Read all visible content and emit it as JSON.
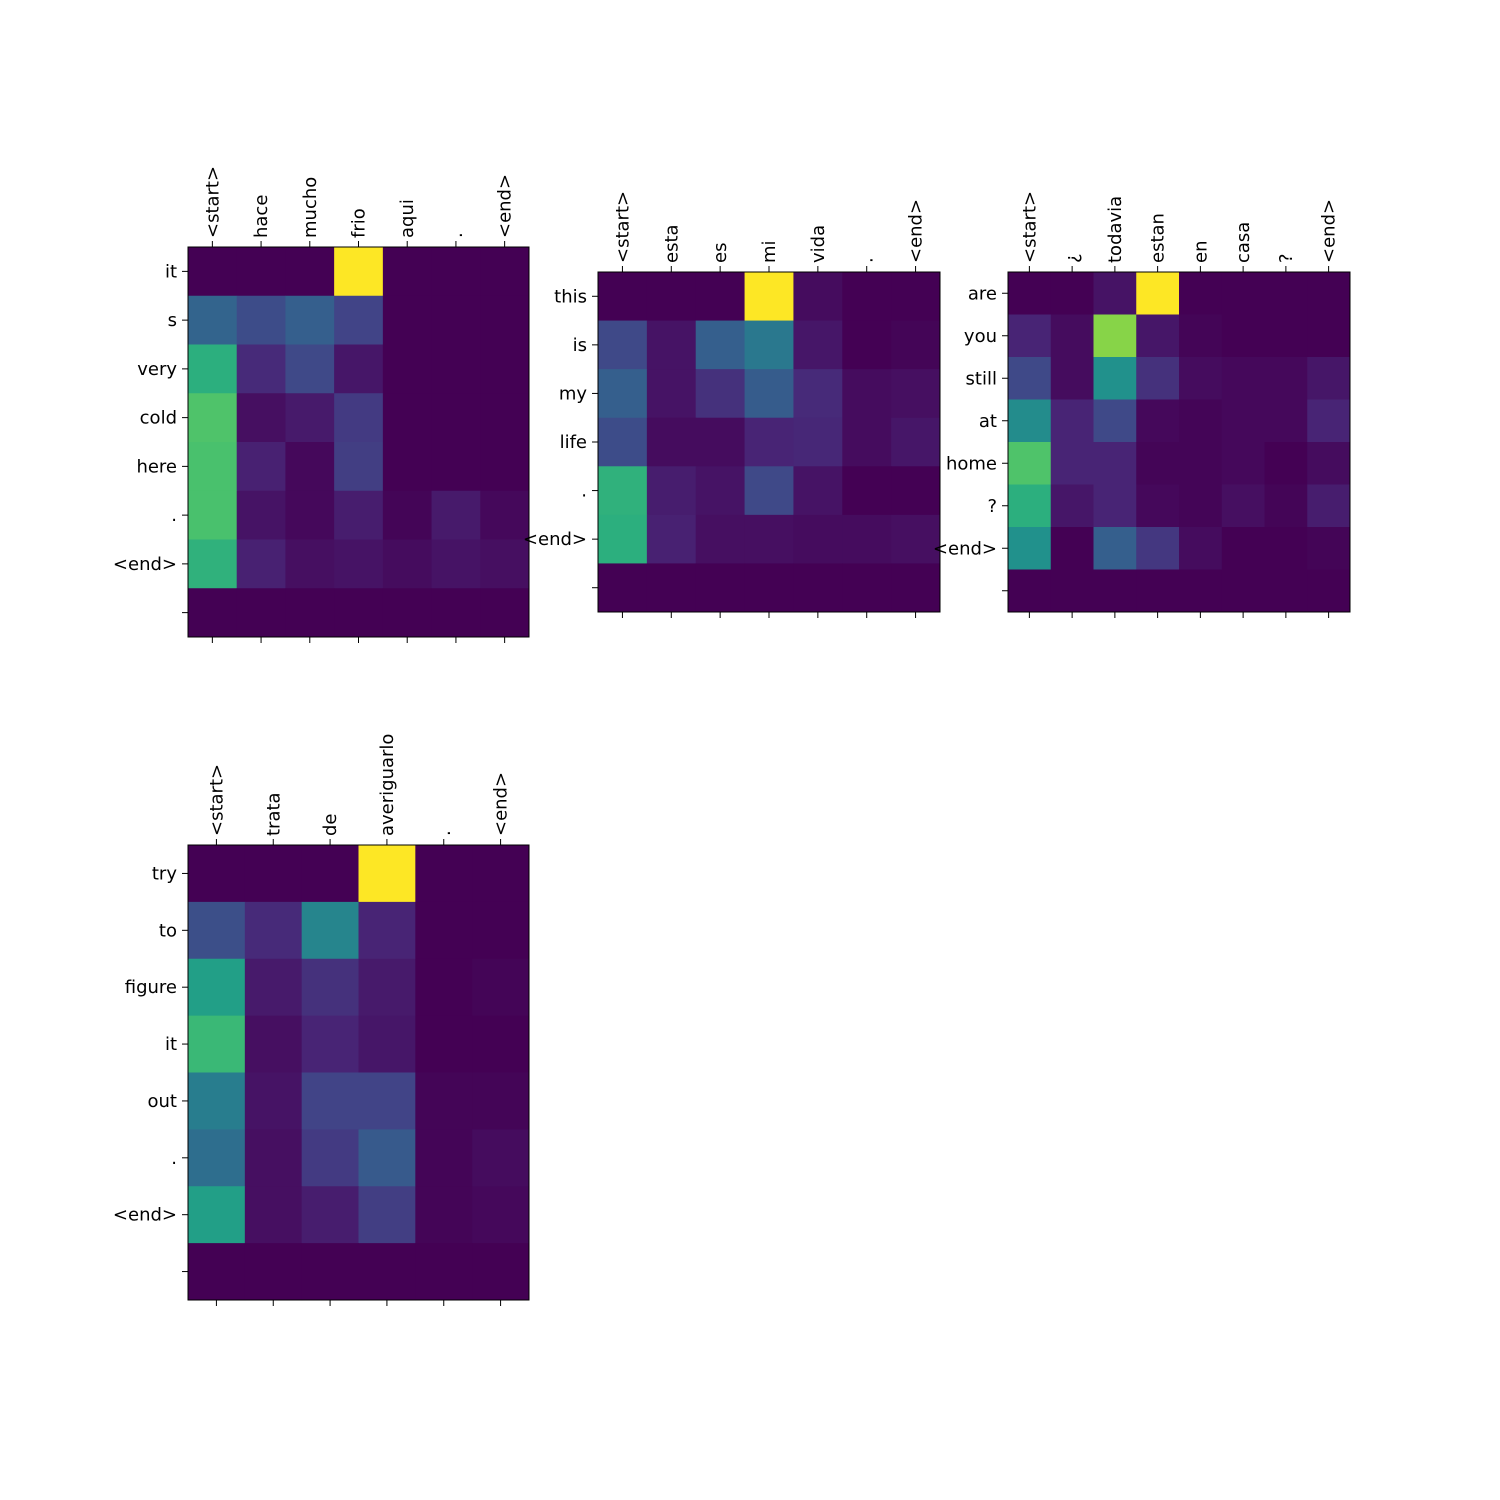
{
  "colormap": "viridis",
  "chart_data": [
    {
      "type": "heatmap",
      "x_labels": [
        "<start>",
        "hace",
        "mucho",
        "frio",
        "aqui",
        ".",
        "<end>"
      ],
      "y_labels": [
        "it",
        "s",
        "very",
        "cold",
        "here",
        ".",
        "<end>",
        ""
      ],
      "values": [
        [
          0.0,
          0.0,
          0.0,
          1.0,
          0.0,
          0.0,
          0.0
        ],
        [
          0.32,
          0.23,
          0.3,
          0.2,
          0.0,
          0.0,
          0.0
        ],
        [
          0.63,
          0.12,
          0.22,
          0.06,
          0.0,
          0.0,
          0.0
        ],
        [
          0.72,
          0.04,
          0.07,
          0.17,
          0.0,
          0.0,
          0.0
        ],
        [
          0.71,
          0.09,
          0.02,
          0.18,
          0.0,
          0.0,
          0.0
        ],
        [
          0.71,
          0.05,
          0.02,
          0.08,
          0.01,
          0.07,
          0.02
        ],
        [
          0.64,
          0.09,
          0.04,
          0.05,
          0.03,
          0.05,
          0.04
        ],
        [
          0.0,
          0.0,
          0.0,
          0.0,
          0.0,
          0.0,
          0.0
        ]
      ]
    },
    {
      "type": "heatmap",
      "x_labels": [
        "<start>",
        "esta",
        "es",
        "mi",
        "vida",
        ".",
        "<end>"
      ],
      "y_labels": [
        "this",
        "is",
        "my",
        "life",
        ".",
        "<end>",
        ""
      ],
      "values": [
        [
          0.0,
          0.0,
          0.0,
          1.0,
          0.03,
          0.0,
          0.0
        ],
        [
          0.22,
          0.05,
          0.3,
          0.4,
          0.06,
          0.0,
          0.01
        ],
        [
          0.3,
          0.05,
          0.14,
          0.29,
          0.12,
          0.03,
          0.04
        ],
        [
          0.23,
          0.03,
          0.03,
          0.1,
          0.11,
          0.03,
          0.06
        ],
        [
          0.64,
          0.08,
          0.05,
          0.22,
          0.05,
          0.0,
          0.0
        ],
        [
          0.63,
          0.09,
          0.04,
          0.04,
          0.03,
          0.03,
          0.04
        ],
        [
          0.0,
          0.0,
          0.0,
          0.0,
          0.0,
          0.0,
          0.0
        ]
      ]
    },
    {
      "type": "heatmap",
      "x_labels": [
        "<start>",
        "¿",
        "todavia",
        "estan",
        "en",
        "casa",
        "?",
        "<end>"
      ],
      "y_labels": [
        "are",
        "you",
        "still",
        "at",
        "home",
        "?",
        "<end>",
        ""
      ],
      "values": [
        [
          0.0,
          0.0,
          0.05,
          1.0,
          0.0,
          0.0,
          0.0,
          0.0
        ],
        [
          0.1,
          0.03,
          0.82,
          0.06,
          0.01,
          0.0,
          0.0,
          0.0
        ],
        [
          0.22,
          0.03,
          0.5,
          0.14,
          0.03,
          0.02,
          0.02,
          0.06
        ],
        [
          0.48,
          0.1,
          0.22,
          0.02,
          0.01,
          0.02,
          0.02,
          0.1
        ],
        [
          0.72,
          0.1,
          0.1,
          0.01,
          0.01,
          0.02,
          0.0,
          0.03
        ],
        [
          0.63,
          0.06,
          0.1,
          0.02,
          0.01,
          0.04,
          0.01,
          0.08
        ],
        [
          0.5,
          0.0,
          0.3,
          0.16,
          0.03,
          0.0,
          0.0,
          0.01
        ],
        [
          0.0,
          0.0,
          0.0,
          0.0,
          0.0,
          0.0,
          0.0,
          0.0
        ]
      ]
    },
    {
      "type": "heatmap",
      "x_labels": [
        "<start>",
        "trata",
        "de",
        "averiguarlo",
        ".",
        "<end>"
      ],
      "y_labels": [
        "try",
        "to",
        "figure",
        "it",
        "out",
        ".",
        "<end>",
        ""
      ],
      "values": [
        [
          0.0,
          0.0,
          0.0,
          1.0,
          0.0,
          0.0
        ],
        [
          0.24,
          0.12,
          0.45,
          0.1,
          0.0,
          0.0
        ],
        [
          0.56,
          0.07,
          0.14,
          0.07,
          0.0,
          0.01
        ],
        [
          0.67,
          0.04,
          0.1,
          0.06,
          0.0,
          0.0
        ],
        [
          0.42,
          0.05,
          0.2,
          0.2,
          0.01,
          0.01
        ],
        [
          0.36,
          0.04,
          0.17,
          0.28,
          0.01,
          0.03
        ],
        [
          0.56,
          0.04,
          0.08,
          0.18,
          0.01,
          0.02
        ],
        [
          0.0,
          0.0,
          0.0,
          0.0,
          0.0,
          0.0
        ]
      ]
    }
  ]
}
